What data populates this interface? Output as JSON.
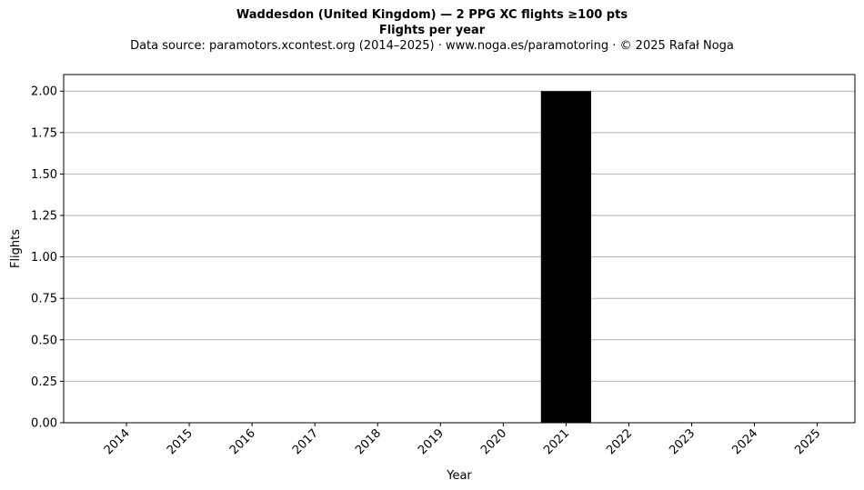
{
  "header": {
    "title": "Waddesdon (United Kingdom)  —  2 PPG XC flights ≥100 pts",
    "subtitle": "Flights per year",
    "source": "Data source: paramotors.xcontest.org (2014–2025)  ·  www.noga.es/paramotoring  ·  © 2025 Rafał Noga"
  },
  "chart_data": {
    "type": "bar",
    "title": "Waddesdon (United Kingdom)  —  2 PPG XC flights ≥100 pts",
    "subtitle": "Flights per year",
    "xlabel": "Year",
    "ylabel": "Flights",
    "categories": [
      "2014",
      "2015",
      "2016",
      "2017",
      "2018",
      "2019",
      "2020",
      "2021",
      "2022",
      "2023",
      "2024",
      "2025"
    ],
    "values": [
      0,
      0,
      0,
      0,
      0,
      0,
      0,
      2,
      0,
      0,
      0,
      0
    ],
    "ylim": [
      0,
      2.1
    ],
    "yticks": [
      "0.00",
      "0.25",
      "0.50",
      "0.75",
      "1.00",
      "1.25",
      "1.50",
      "1.75",
      "2.00"
    ],
    "grid": "y",
    "bar_color": "#000000",
    "grid_color": "#b0b0b0"
  }
}
